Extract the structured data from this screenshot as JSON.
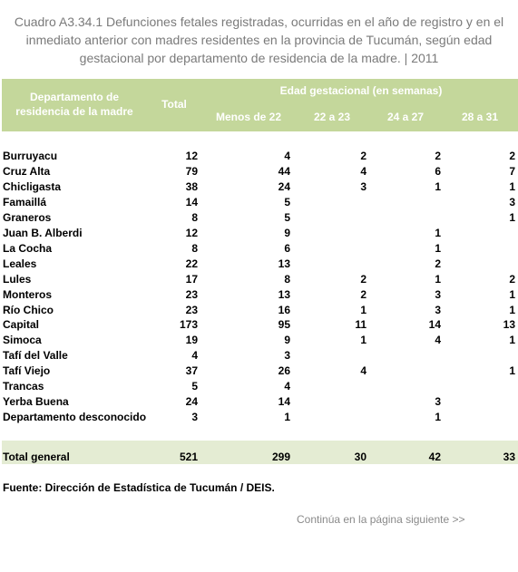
{
  "header": {
    "title": "Cuadro A3.34.1 Defunciones fetales registradas, ocurridas en el año de registro y en el inmediato anterior con madres residentes en la provincia de Tucumán, según  edad gestacional por departamento de residencia de la madre. | 2011"
  },
  "table": {
    "columns": {
      "department": "Departamento de residencia de la madre",
      "total": "Total",
      "group": "Edad gestacional (en semanas)",
      "subcolumns": [
        "Menos de 22",
        "22 a 23",
        "24 a 27",
        "28 a 31"
      ]
    },
    "rows": [
      [
        "Burruyacu",
        12,
        4,
        2,
        2,
        2
      ],
      [
        "Cruz Alta",
        79,
        44,
        4,
        6,
        7
      ],
      [
        "Chicligasta",
        38,
        24,
        3,
        1,
        1
      ],
      [
        "Famaillá",
        14,
        5,
        null,
        null,
        3
      ],
      [
        "Graneros",
        8,
        5,
        null,
        null,
        1
      ],
      [
        "Juan B. Alberdi",
        12,
        9,
        null,
        1,
        null
      ],
      [
        "La Cocha",
        8,
        6,
        null,
        1,
        null
      ],
      [
        "Leales",
        22,
        13,
        null,
        2,
        null
      ],
      [
        "Lules",
        17,
        8,
        2,
        1,
        2
      ],
      [
        "Monteros",
        23,
        13,
        2,
        3,
        1
      ],
      [
        "Río Chico",
        23,
        16,
        1,
        3,
        1
      ],
      [
        "Capital",
        173,
        95,
        11,
        14,
        13
      ],
      [
        "Simoca",
        19,
        9,
        1,
        4,
        1
      ],
      [
        "Tafí del Valle",
        4,
        3,
        null,
        null,
        null
      ],
      [
        "Tafí Viejo",
        37,
        26,
        4,
        null,
        1
      ],
      [
        "Trancas",
        5,
        4,
        null,
        null,
        null
      ],
      [
        "Yerba Buena",
        24,
        14,
        null,
        3,
        null
      ],
      [
        "Departamento desconocido",
        3,
        1,
        null,
        1,
        null
      ]
    ],
    "total_row": [
      "Total general",
      521,
      299,
      30,
      42,
      33
    ]
  },
  "source": "Fuente: Dirección de Estadística de Tucumán / DEIS.",
  "footer": "Continúa en la página siguiente >>"
}
